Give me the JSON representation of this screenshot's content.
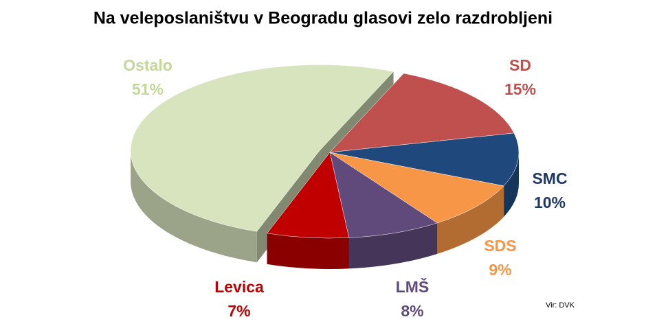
{
  "chart_data": {
    "type": "pie",
    "title": "Na veleposlaništvu v Beogradu glasovi zelo razdrobljeni",
    "categories": [
      "SD",
      "SMC",
      "SDS",
      "LMŠ",
      "Levica",
      "Ostalo"
    ],
    "values": [
      15,
      10,
      9,
      8,
      7,
      51
    ],
    "value_labels": [
      "15%",
      "10%",
      "9%",
      "8%",
      "7%",
      "51%"
    ],
    "colors": [
      "#c0504d",
      "#1f497d",
      "#f79646",
      "#604a7b",
      "#c00000",
      "#d7e4bd"
    ],
    "source": "Vir: DVK"
  }
}
